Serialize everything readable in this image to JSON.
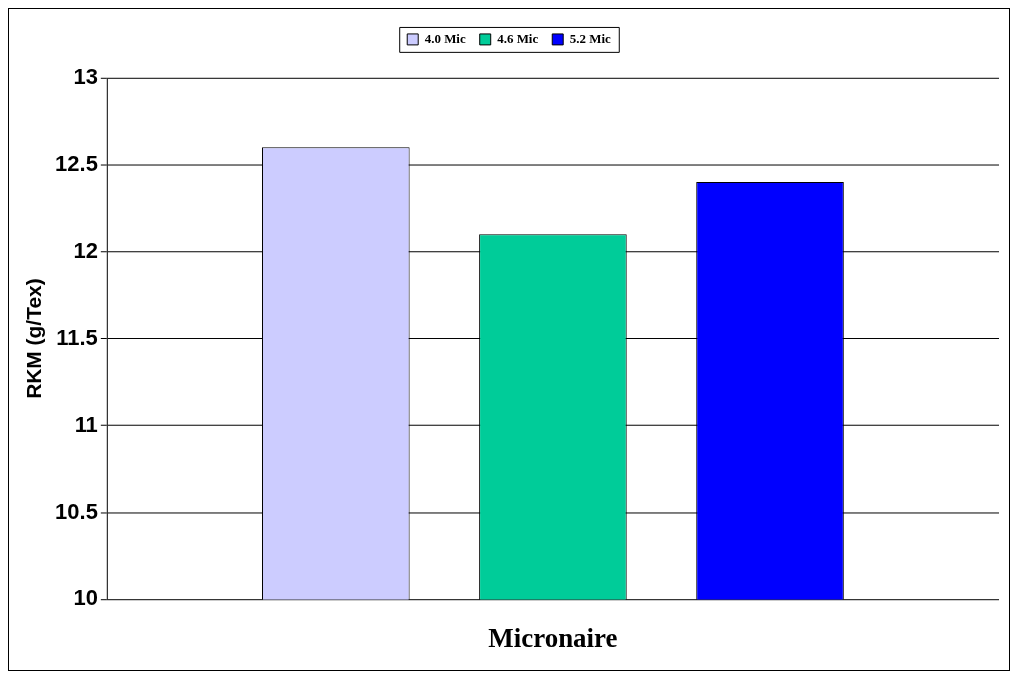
{
  "chart_data": {
    "type": "bar",
    "xlabel": "Micronaire",
    "ylabel": "RKM (g/Tex)",
    "categories": [
      null
    ],
    "series": [
      {
        "name": "4.0 Mic",
        "color": "#ccccff",
        "values": [
          12.6
        ]
      },
      {
        "name": "4.6 Mic",
        "color": "#00cc99",
        "values": [
          12.1
        ]
      },
      {
        "name": "5.2 Mic",
        "color": "#0000ff",
        "values": [
          12.4
        ]
      }
    ],
    "ylim": [
      10,
      13
    ],
    "yticks": [
      10,
      10.5,
      11,
      11.5,
      12,
      12.5,
      13
    ],
    "grid": "y",
    "legend": "top"
  }
}
